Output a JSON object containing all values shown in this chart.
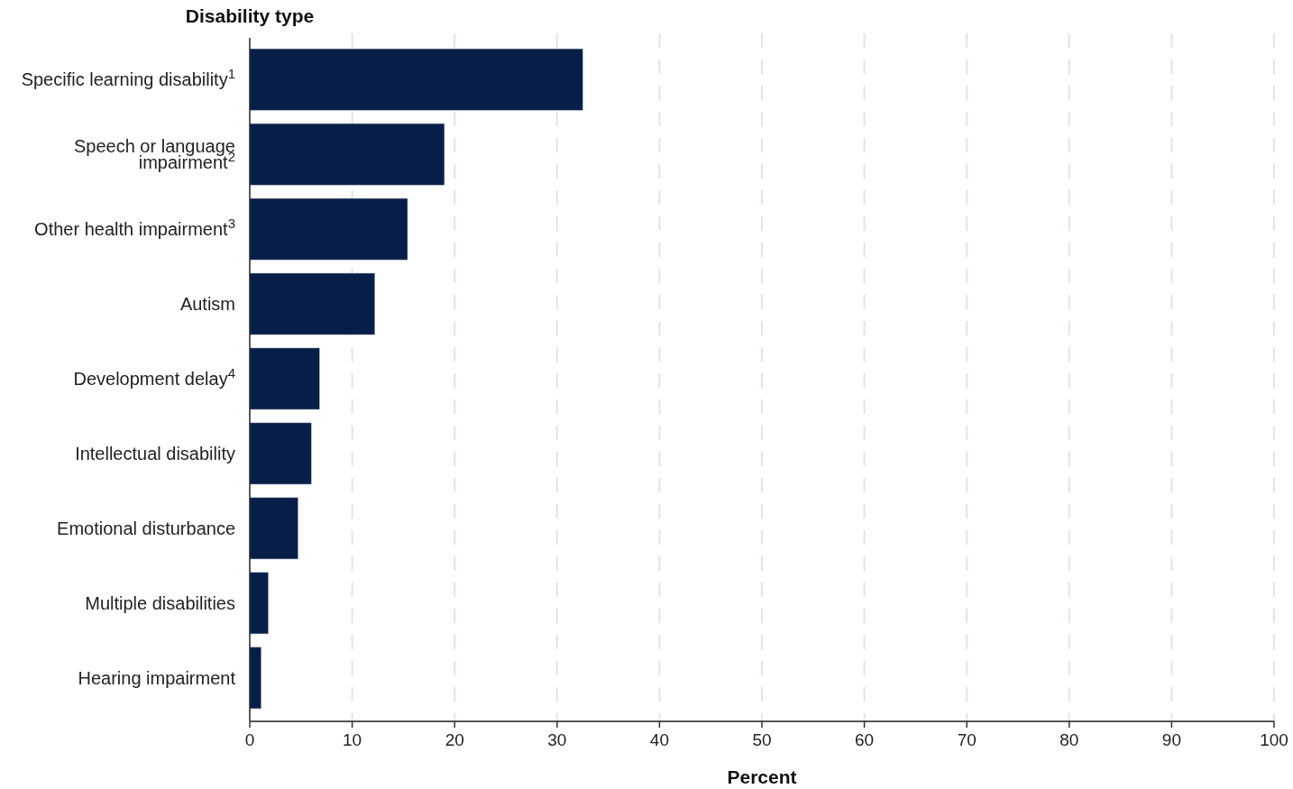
{
  "chart_data": {
    "type": "bar",
    "orientation": "horizontal",
    "ylabel": "Disability type",
    "xlabel": "Percent",
    "categories": [
      "Specific learning disability$^{1}$",
      "Speech or language impairment$^{2}$",
      "Other health impairment$^{3}$",
      "Autism",
      "Development delay$^{4}$",
      "Intellectual disability",
      "Emotional disturbance",
      "Multiple disabilities",
      "Hearing impairment"
    ],
    "values": [
      32.5,
      19.0,
      15.4,
      12.2,
      6.8,
      6.0,
      4.7,
      1.8,
      1.1
    ],
    "color": "#071e48",
    "xlim": [
      0,
      100
    ],
    "xticks": [
      0,
      10,
      20,
      30,
      40,
      50,
      60,
      70,
      80,
      90,
      100
    ],
    "grid": "x"
  }
}
